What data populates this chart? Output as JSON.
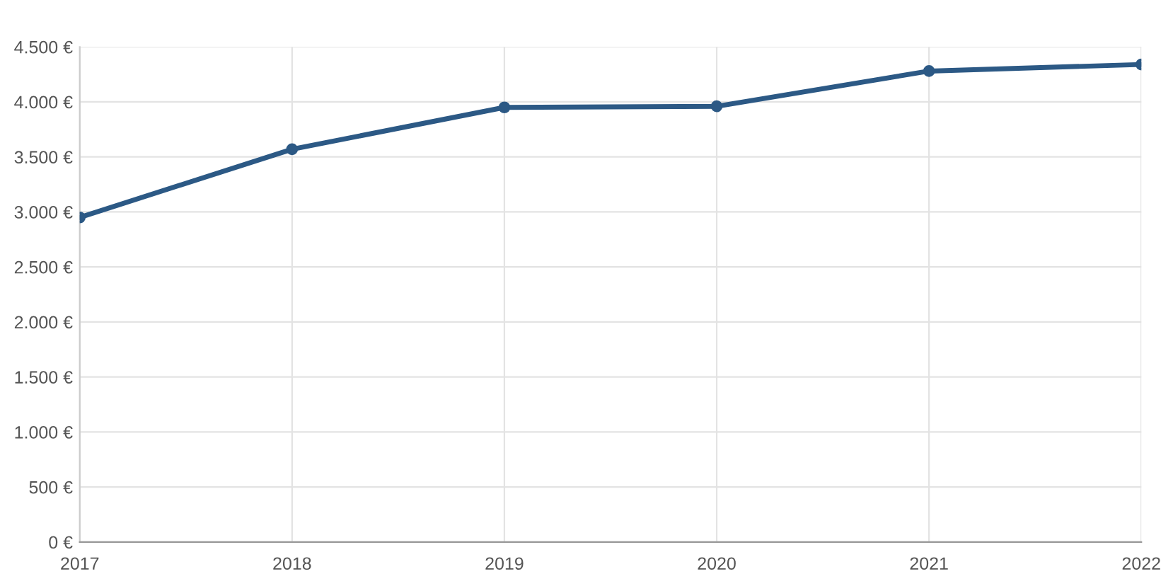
{
  "chart_data": {
    "type": "line",
    "categories": [
      "2017",
      "2018",
      "2019",
      "2020",
      "2021",
      "2022"
    ],
    "series": [
      {
        "color": "#2c5985",
        "values": [
          2950,
          3570,
          3950,
          3960,
          4280,
          4340
        ]
      }
    ],
    "ylim": [
      0,
      4500
    ],
    "yticks": [
      {
        "value": 0,
        "label": "0 €"
      },
      {
        "value": 500,
        "label": "500 €"
      },
      {
        "value": 1000,
        "label": "1.000 €"
      },
      {
        "value": 1500,
        "label": "1.500 €"
      },
      {
        "value": 2000,
        "label": "2.000 €"
      },
      {
        "value": 2500,
        "label": "2.500 €"
      },
      {
        "value": 3000,
        "label": "3.000 €"
      },
      {
        "value": 3500,
        "label": "3.500 €"
      },
      {
        "value": 4000,
        "label": "4.000 €"
      },
      {
        "value": 4500,
        "label": "4.500 €"
      }
    ],
    "grid": true,
    "marker": "circle",
    "line_style": "solid"
  }
}
